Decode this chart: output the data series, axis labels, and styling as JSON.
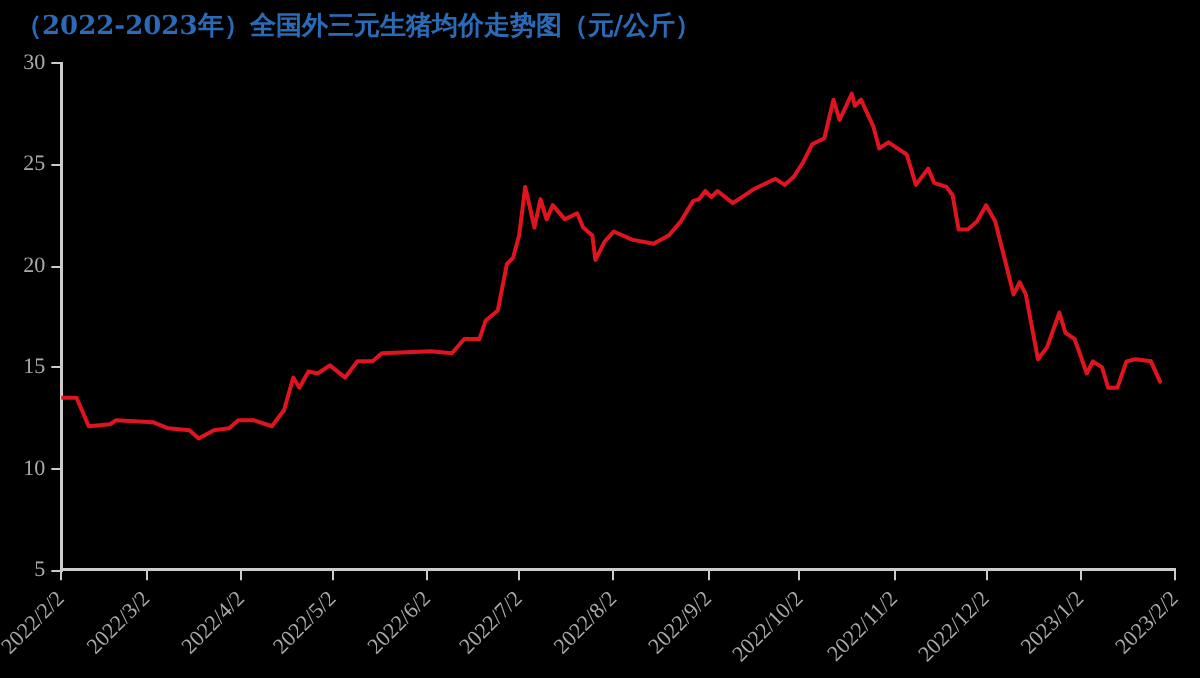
{
  "chart_data": {
    "type": "line",
    "title": "（2022-2023年）全国外三元生猪均价走势图（元/公斤）",
    "x": [
      "2022-02-02",
      "2022-02-07",
      "2022-02-11",
      "2022-02-18",
      "2022-02-20",
      "2022-03-04",
      "2022-03-09",
      "2022-03-16",
      "2022-03-19",
      "2022-03-24",
      "2022-03-29",
      "2022-04-01",
      "2022-04-06",
      "2022-04-12",
      "2022-04-16",
      "2022-04-19",
      "2022-04-21",
      "2022-04-24",
      "2022-04-27",
      "2022-05-01",
      "2022-05-06",
      "2022-05-10",
      "2022-05-15",
      "2022-05-18",
      "2022-06-03",
      "2022-06-10",
      "2022-06-14",
      "2022-06-19",
      "2022-06-21",
      "2022-06-25",
      "2022-06-28",
      "2022-06-30",
      "2022-07-02",
      "2022-07-04",
      "2022-07-07",
      "2022-07-09",
      "2022-07-11",
      "2022-07-13",
      "2022-07-17",
      "2022-07-21",
      "2022-07-23",
      "2022-07-26",
      "2022-07-27",
      "2022-07-30",
      "2022-08-02",
      "2022-08-08",
      "2022-08-15",
      "2022-08-20",
      "2022-08-24",
      "2022-08-28",
      "2022-08-30",
      "2022-09-01",
      "2022-09-03",
      "2022-09-05",
      "2022-09-10",
      "2022-09-13",
      "2022-09-17",
      "2022-09-24",
      "2022-09-27",
      "2022-09-30",
      "2022-10-03",
      "2022-10-06",
      "2022-10-10",
      "2022-10-13",
      "2022-10-15",
      "2022-10-19",
      "2022-10-20",
      "2022-10-22",
      "2022-10-26",
      "2022-10-28",
      "2022-10-31",
      "2022-11-02",
      "2022-11-06",
      "2022-11-09",
      "2022-11-13",
      "2022-11-15",
      "2022-11-19",
      "2022-11-21",
      "2022-11-23",
      "2022-11-26",
      "2022-11-29",
      "2022-12-02",
      "2022-12-05",
      "2022-12-11",
      "2022-12-13",
      "2022-12-15",
      "2022-12-19",
      "2022-12-22",
      "2022-12-26",
      "2022-12-28",
      "2022-12-31",
      "2023-01-04",
      "2023-01-06",
      "2023-01-09",
      "2023-01-11",
      "2023-01-14",
      "2023-01-17",
      "2023-01-20",
      "2023-01-25",
      "2023-01-28"
    ],
    "series": [
      {
        "color": "#e0141e",
        "values": [
          13.5,
          13.5,
          12.1,
          12.2,
          12.4,
          12.3,
          12.0,
          11.9,
          11.5,
          11.9,
          12.0,
          12.4,
          12.4,
          12.1,
          12.9,
          14.5,
          14.0,
          14.8,
          14.7,
          15.1,
          14.5,
          15.3,
          15.3,
          15.7,
          15.8,
          15.7,
          16.4,
          16.4,
          17.3,
          17.8,
          20.1,
          20.4,
          21.5,
          23.9,
          21.9,
          23.3,
          22.3,
          23.0,
          22.3,
          22.6,
          21.9,
          21.5,
          20.3,
          21.2,
          21.7,
          21.3,
          21.1,
          21.5,
          22.2,
          23.2,
          23.3,
          23.7,
          23.4,
          23.7,
          23.1,
          23.4,
          23.8,
          24.3,
          24.0,
          24.4,
          25.1,
          26.0,
          26.3,
          28.2,
          27.2,
          28.5,
          27.9,
          28.2,
          26.9,
          25.8,
          26.1,
          25.9,
          25.5,
          24.0,
          24.8,
          24.1,
          23.9,
          23.5,
          21.8,
          21.8,
          22.2,
          23.0,
          22.2,
          18.6,
          19.2,
          18.6,
          15.4,
          16.0,
          17.7,
          16.7,
          16.4,
          14.7,
          15.3,
          15.0,
          14.0,
          14.0,
          15.3,
          15.4,
          15.3,
          14.3
        ]
      }
    ],
    "xlim": [
      "2022-02-02",
      "2023-02-02"
    ],
    "xticks": [
      {
        "value": "2022-02-02",
        "label": "2022/2/2"
      },
      {
        "value": "2022-03-02",
        "label": "2022/3/2"
      },
      {
        "value": "2022-04-02",
        "label": "2022/4/2"
      },
      {
        "value": "2022-05-02",
        "label": "2022/5/2"
      },
      {
        "value": "2022-06-02",
        "label": "2022/6/2"
      },
      {
        "value": "2022-07-02",
        "label": "2022/7/2"
      },
      {
        "value": "2022-08-02",
        "label": "2022/8/2"
      },
      {
        "value": "2022-09-02",
        "label": "2022/9/2"
      },
      {
        "value": "2022-10-02",
        "label": "2022/10/2"
      },
      {
        "value": "2022-11-02",
        "label": "2022/11/2"
      },
      {
        "value": "2022-12-02",
        "label": "2022/12/2"
      },
      {
        "value": "2023-01-02",
        "label": "2023/1/2"
      },
      {
        "value": "2023-02-02",
        "label": "2023/2/2"
      }
    ],
    "ylim": [
      5,
      30
    ],
    "yticks": [
      5,
      10,
      15,
      20,
      25,
      30
    ],
    "grid": false,
    "legend": false,
    "marker": "none",
    "line_style": "solid"
  }
}
